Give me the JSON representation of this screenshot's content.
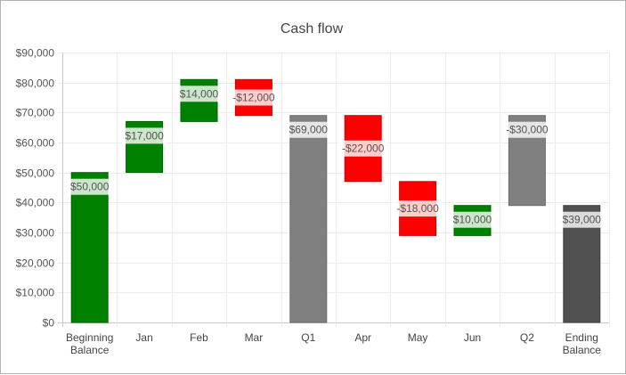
{
  "chart_data": {
    "type": "bar",
    "subtype": "waterfall",
    "title": "Cash flow",
    "xlabel": "",
    "ylabel": "",
    "ylim": [
      0,
      90000
    ],
    "yticks": [
      0,
      10000,
      20000,
      30000,
      40000,
      50000,
      60000,
      70000,
      80000,
      90000
    ],
    "ytick_labels": [
      "$0",
      "$10,000",
      "$20,000",
      "$30,000",
      "$40,000",
      "$50,000",
      "$60,000",
      "$70,000",
      "$80,000",
      "$90,000"
    ],
    "grid": true,
    "legend": false,
    "categories": [
      [
        "Beginning",
        "Balance"
      ],
      [
        "Jan"
      ],
      [
        "Feb"
      ],
      [
        "Mar"
      ],
      [
        "Q1"
      ],
      [
        "Apr"
      ],
      [
        "May"
      ],
      [
        "Jun"
      ],
      [
        "Q2"
      ],
      [
        "Ending",
        "Balance"
      ]
    ],
    "values": [
      50000,
      17000,
      14000,
      -12000,
      69000,
      -22000,
      -18000,
      10000,
      -30000,
      39000
    ],
    "bars": [
      {
        "low": 0,
        "high": 50000,
        "kind": "increase"
      },
      {
        "low": 50000,
        "high": 67000,
        "kind": "increase"
      },
      {
        "low": 67000,
        "high": 81000,
        "kind": "increase"
      },
      {
        "low": 69000,
        "high": 81000,
        "kind": "decrease"
      },
      {
        "low": 0,
        "high": 69000,
        "kind": "subtotal"
      },
      {
        "low": 47000,
        "high": 69000,
        "kind": "decrease"
      },
      {
        "low": 29000,
        "high": 47000,
        "kind": "decrease"
      },
      {
        "low": 29000,
        "high": 39000,
        "kind": "increase"
      },
      {
        "low": 39000,
        "high": 69000,
        "kind": "subtotal"
      },
      {
        "low": 0,
        "high": 39000,
        "kind": "total"
      }
    ],
    "data_labels": [
      "$50,000",
      "$17,000",
      "$14,000",
      "-$12,000",
      "$69,000",
      "-$22,000",
      "-$18,000",
      "$10,000",
      "-$30,000",
      "$39,000"
    ],
    "colors": {
      "increase": "#008000",
      "increase_edge": "#006400",
      "decrease": "#ff0000",
      "decrease_edge": "#cc0000",
      "subtotal": "#808080",
      "subtotal_edge": "#6a6a6a",
      "total": "#505050",
      "total_edge": "#404040",
      "grid": "#ebebeb",
      "axis": "#c8c8c8",
      "label_box": "#ffffff"
    }
  }
}
